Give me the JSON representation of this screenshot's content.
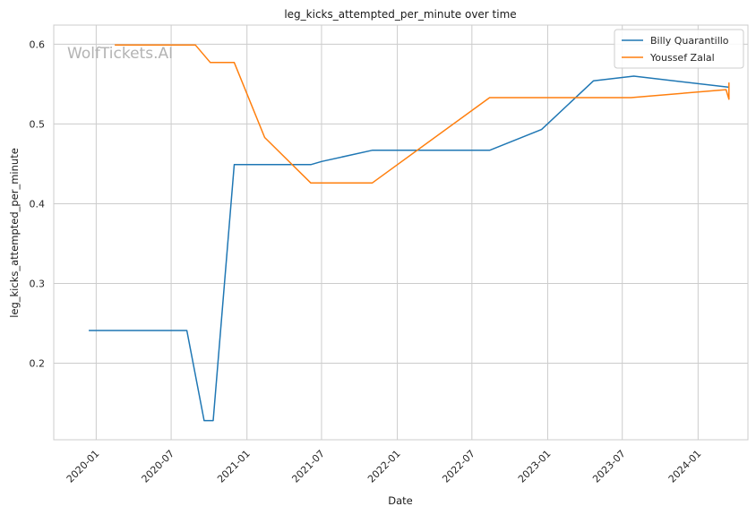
{
  "watermark": "WolfTickets.AI",
  "chart_data": {
    "type": "line",
    "title": "leg_kicks_attempted_per_minute over time",
    "xlabel": "Date",
    "ylabel": "leg_kicks_attempted_per_minute",
    "xlim": [
      "2019-09-20",
      "2024-05-01"
    ],
    "ylim": [
      0.104,
      0.624
    ],
    "x_ticks": [
      "2020-01-01",
      "2020-07-01",
      "2021-01-01",
      "2021-07-01",
      "2022-01-01",
      "2022-07-01",
      "2023-01-01",
      "2023-07-01",
      "2024-01-01"
    ],
    "x_tick_labels": [
      "2020-01",
      "2020-07",
      "2021-01",
      "2021-07",
      "2022-01",
      "2022-07",
      "2023-01",
      "2023-07",
      "2024-01"
    ],
    "y_ticks": [
      0.2,
      0.3,
      0.4,
      0.5,
      0.6
    ],
    "y_tick_labels": [
      "0.2",
      "0.3",
      "0.4",
      "0.5",
      "0.6"
    ],
    "grid": true,
    "legend": "top-right",
    "series": [
      {
        "name": "Billy Quarantillo",
        "color": "#1f77b4",
        "points": [
          {
            "x": "2019-12-14",
            "y": 0.241
          },
          {
            "x": "2020-08-08",
            "y": 0.241
          },
          {
            "x": "2020-09-19",
            "y": 0.128
          },
          {
            "x": "2020-10-11",
            "y": 0.128
          },
          {
            "x": "2020-12-01",
            "y": 0.449
          },
          {
            "x": "2021-06-05",
            "y": 0.449
          },
          {
            "x": "2021-07-01",
            "y": 0.453
          },
          {
            "x": "2021-11-01",
            "y": 0.467
          },
          {
            "x": "2022-08-13",
            "y": 0.467
          },
          {
            "x": "2022-12-17",
            "y": 0.493
          },
          {
            "x": "2023-04-22",
            "y": 0.554
          },
          {
            "x": "2023-07-29",
            "y": 0.56
          },
          {
            "x": "2024-03-16",
            "y": 0.546
          }
        ]
      },
      {
        "name": "Youssef Zalal",
        "color": "#ff7f0e",
        "points": [
          {
            "x": "2020-02-15",
            "y": 0.599
          },
          {
            "x": "2020-08-29",
            "y": 0.599
          },
          {
            "x": "2020-10-04",
            "y": 0.577
          },
          {
            "x": "2020-12-01",
            "y": 0.577
          },
          {
            "x": "2021-02-13",
            "y": 0.483
          },
          {
            "x": "2021-06-05",
            "y": 0.426
          },
          {
            "x": "2021-11-01",
            "y": 0.426
          },
          {
            "x": "2022-08-13",
            "y": 0.533
          },
          {
            "x": "2023-07-22",
            "y": 0.533
          },
          {
            "x": "2024-03-09",
            "y": 0.543
          },
          {
            "x": "2024-03-16",
            "y": 0.531
          },
          {
            "x": "2024-03-16",
            "y": 0.552
          }
        ]
      }
    ]
  }
}
